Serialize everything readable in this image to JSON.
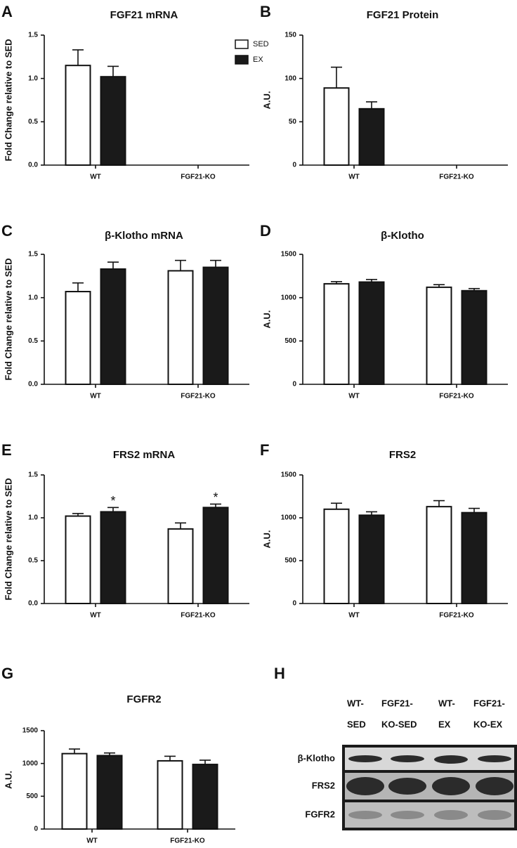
{
  "chart_data": [
    {
      "type": "bar",
      "panel": "A",
      "title": "FGF21 mRNA",
      "y_label": "Fold Change relative to SED",
      "categories": [
        "WT",
        "FGF21-KO"
      ],
      "legend": "upper right",
      "series": [
        {
          "name": "SED",
          "color": "#ffffff",
          "values": [
            1.15,
            null
          ],
          "errors": [
            0.18,
            null
          ]
        },
        {
          "name": "EX",
          "color": "#1a1a1a",
          "values": [
            1.02,
            null
          ],
          "errors": [
            0.12,
            null
          ]
        }
      ],
      "ylim": [
        0,
        1.5
      ],
      "yticks": [
        {
          "value": 0,
          "label": "0.0"
        },
        0.5,
        {
          "value": 1,
          "label": "1.0"
        },
        1.5
      ]
    },
    {
      "type": "bar",
      "panel": "B",
      "title": "FGF21 Protein",
      "y_label": "A.U.",
      "categories": [
        "WT",
        "FGF21-KO"
      ],
      "series": [
        {
          "color": "#ffffff",
          "values": [
            89,
            null
          ],
          "errors": [
            24,
            null
          ]
        },
        {
          "color": "#1a1a1a",
          "values": [
            65,
            null
          ],
          "errors": [
            8,
            null
          ]
        }
      ],
      "ylim": [
        0,
        150
      ],
      "yticks": [
        0,
        50,
        100,
        150
      ]
    },
    {
      "type": "bar",
      "panel": "C",
      "title": "β-Klotho mRNA",
      "y_label": "Fold Change relative to SED",
      "categories": [
        "WT",
        "FGF21-KO"
      ],
      "series": [
        {
          "color": "#ffffff",
          "values": [
            1.07,
            1.31
          ],
          "errors": [
            0.1,
            0.12
          ]
        },
        {
          "color": "#1a1a1a",
          "values": [
            1.33,
            1.35
          ],
          "errors": [
            0.08,
            0.08
          ]
        }
      ],
      "ylim": [
        0,
        1.5
      ],
      "yticks": [
        {
          "value": 0,
          "label": "0.0"
        },
        0.5,
        {
          "value": 1,
          "label": "1.0"
        },
        1.5
      ]
    },
    {
      "type": "bar",
      "panel": "D",
      "title": "β-Klotho",
      "y_label": "A.U.",
      "categories": [
        "WT",
        "FGF21-KO"
      ],
      "series": [
        {
          "color": "#ffffff",
          "values": [
            1160,
            1120
          ],
          "errors": [
            25,
            30
          ]
        },
        {
          "color": "#1a1a1a",
          "values": [
            1180,
            1080
          ],
          "errors": [
            30,
            25
          ]
        }
      ],
      "ylim": [
        0,
        1500
      ],
      "yticks": [
        0,
        500,
        1000,
        1500
      ]
    },
    {
      "type": "bar",
      "panel": "E",
      "title": "FRS2 mRNA",
      "y_label": "Fold Change relative to SED",
      "categories": [
        "WT",
        "FGF21-KO"
      ],
      "series": [
        {
          "color": "#ffffff",
          "values": [
            1.02,
            0.87
          ],
          "errors": [
            0.03,
            0.07
          ]
        },
        {
          "color": "#1a1a1a",
          "values": [
            1.07,
            1.12
          ],
          "errors": [
            0.05,
            0.04
          ],
          "markers": [
            "*",
            "*"
          ]
        }
      ],
      "ylim": [
        0,
        1.5
      ],
      "yticks": [
        {
          "value": 0,
          "label": "0.0"
        },
        0.5,
        {
          "value": 1,
          "label": "1.0"
        },
        1.5
      ]
    },
    {
      "type": "bar",
      "panel": "F",
      "title": "FRS2",
      "y_label": "A.U.",
      "categories": [
        "WT",
        "FGF21-KO"
      ],
      "series": [
        {
          "color": "#ffffff",
          "values": [
            1100,
            1130
          ],
          "errors": [
            70,
            70
          ]
        },
        {
          "color": "#1a1a1a",
          "values": [
            1030,
            1060
          ],
          "errors": [
            40,
            50
          ]
        }
      ],
      "ylim": [
        0,
        1500
      ],
      "yticks": [
        0,
        500,
        1000,
        1500
      ]
    },
    {
      "type": "bar",
      "panel": "G",
      "title": "FGFR2",
      "y_label": "A.U.",
      "categories": [
        "WT",
        "FGF21-KO"
      ],
      "series": [
        {
          "color": "#ffffff",
          "values": [
            1150,
            1040
          ],
          "errors": [
            70,
            70
          ]
        },
        {
          "color": "#1a1a1a",
          "values": [
            1120,
            985
          ],
          "errors": [
            40,
            65
          ]
        }
      ],
      "ylim": [
        0,
        1500
      ],
      "yticks": [
        0,
        500,
        1000,
        1500
      ]
    }
  ],
  "blot": {
    "panel": "H",
    "lanes": [
      [
        "WT-",
        "SED"
      ],
      [
        "FGF21-",
        "KO-SED"
      ],
      [
        "WT-",
        "EX"
      ],
      [
        "FGF21-",
        "KO-EX"
      ]
    ],
    "rows": [
      "β-Klotho",
      "FRS2",
      "FGFR2"
    ]
  }
}
